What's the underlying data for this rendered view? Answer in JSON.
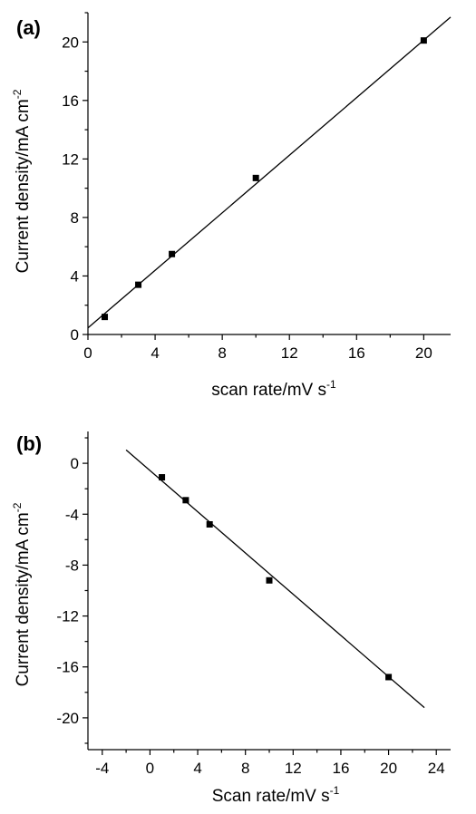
{
  "chart_data": [
    {
      "panel_label": "(a)",
      "type": "scatter",
      "xlabel": "scan rate/mV s",
      "xlabel_sup": "-1",
      "ylabel": "Current density/mA cm",
      "ylabel_sup": "-2",
      "xlim": [
        0,
        21.6
      ],
      "ylim": [
        0,
        22
      ],
      "xticks": [
        0,
        4,
        8,
        12,
        16,
        20
      ],
      "xtick_labels": [
        "0",
        "4",
        "8",
        "12",
        "16",
        "20"
      ],
      "yticks": [
        0,
        4,
        8,
        12,
        16,
        20
      ],
      "ytick_labels": [
        "0",
        "4",
        "8",
        "12",
        "16",
        "20"
      ],
      "x": [
        1,
        3,
        5,
        10,
        20
      ],
      "y": [
        1.2,
        3.4,
        5.5,
        10.7,
        20.1
      ],
      "fit_line": {
        "x": [
          0,
          21.6
        ],
        "y": [
          0.45,
          21.7
        ]
      }
    },
    {
      "panel_label": "(b)",
      "type": "scatter",
      "xlabel": "Scan rate/mV s",
      "xlabel_sup": "-1",
      "ylabel": "Current density/mA cm",
      "ylabel_sup": "-2",
      "xlim": [
        -5.2,
        25.2
      ],
      "ylim": [
        -22.5,
        2.5
      ],
      "xticks": [
        -4,
        0,
        4,
        8,
        12,
        16,
        20,
        24
      ],
      "xtick_labels": [
        "-4",
        "0",
        "4",
        "8",
        "12",
        "16",
        "20",
        "24"
      ],
      "yticks": [
        0,
        -4,
        -8,
        -12,
        -16,
        -20
      ],
      "ytick_labels": [
        "0",
        "-4",
        "-8",
        "-12",
        "-16",
        "-20"
      ],
      "x": [
        1,
        3,
        5,
        10,
        20
      ],
      "y": [
        -1.1,
        -2.9,
        -4.8,
        -9.2,
        -16.8
      ],
      "fit_line": {
        "x": [
          -2,
          23
        ],
        "y": [
          1.05,
          -19.2
        ]
      }
    }
  ]
}
